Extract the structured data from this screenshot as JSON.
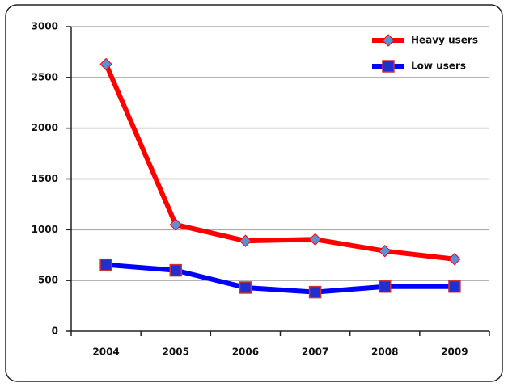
{
  "chart_data": {
    "type": "line",
    "categories": [
      "2004",
      "2005",
      "2006",
      "2007",
      "2008",
      "2009"
    ],
    "series": [
      {
        "name": "Heavy users",
        "color": "#ff0000",
        "marker": "diamond",
        "marker_color": "#5b8fd6",
        "values": [
          2630,
          1050,
          890,
          905,
          790,
          710
        ]
      },
      {
        "name": "Low users",
        "color": "#0000ff",
        "marker": "square",
        "marker_color": "#1f2fd0",
        "values": [
          655,
          600,
          430,
          385,
          440,
          440
        ]
      }
    ],
    "ylim": [
      0,
      3000
    ],
    "yticks": [
      0,
      500,
      1000,
      1500,
      2000,
      2500,
      3000
    ],
    "grid": true,
    "legend": "top-right"
  }
}
